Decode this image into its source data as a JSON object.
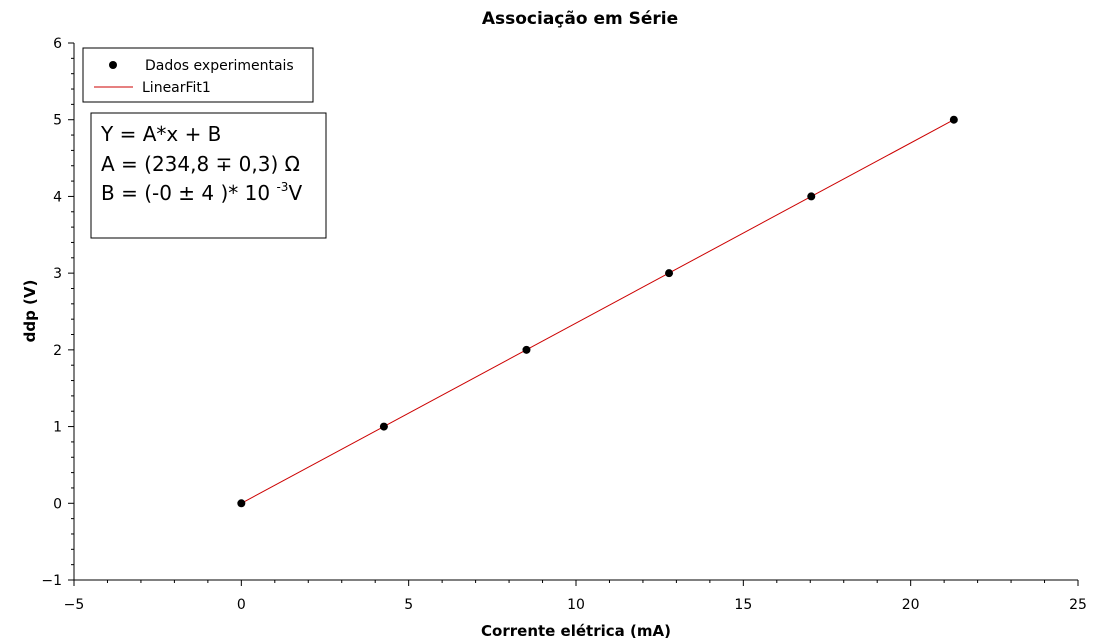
{
  "chart_data": {
    "type": "scatter",
    "title": "Associação em Série",
    "xlabel": "Corrente elétrica (mA)",
    "ylabel": "ddp (V)",
    "xlim": [
      -5,
      25
    ],
    "ylim": [
      -1,
      6
    ],
    "xticks": [
      -5,
      0,
      5,
      10,
      15,
      20,
      25
    ],
    "xtick_labels": [
      "−5",
      "0",
      "5",
      "10",
      "15",
      "20",
      "25"
    ],
    "yticks": [
      -1,
      0,
      1,
      2,
      3,
      4,
      5,
      6
    ],
    "ytick_labels": [
      "−1",
      "0",
      "1",
      "2",
      "3",
      "4",
      "5",
      "6"
    ],
    "grid": false,
    "legend_position": "top-left",
    "series": [
      {
        "name": "Dados experimentais",
        "kind": "points",
        "color": "#000000",
        "x": [
          0,
          4.26,
          8.52,
          12.78,
          17.03,
          21.29
        ],
        "y": [
          0,
          1,
          2,
          3,
          4,
          5
        ]
      },
      {
        "name": "LinearFit1",
        "kind": "line",
        "color": "#cc0000",
        "x": [
          0,
          21.29
        ],
        "y": [
          0,
          5
        ]
      }
    ],
    "fit_box": {
      "line1": "Y = A*x + B",
      "line2": "A = (234,8 ∓ 0,3) Ω",
      "line3_main": "B = (-0 ± 4 )* 10 ",
      "line3_exp": "-3",
      "line3_unit": "V"
    }
  }
}
